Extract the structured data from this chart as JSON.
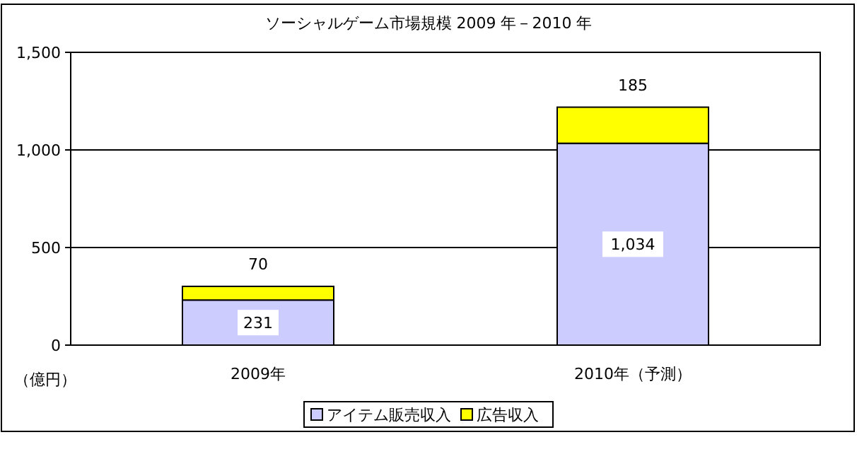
{
  "chart_data": {
    "type": "bar",
    "title": "ソーシャルゲーム市場規模 2009 年－2010 年",
    "ylabel": "（億円）",
    "categories": [
      "2009年",
      "2010年（予測）"
    ],
    "stacked": true,
    "series": [
      {
        "name": "アイテム販売収入",
        "color": "#ccccff",
        "values": [
          231,
          1034
        ],
        "value_labels": [
          "231",
          "1,034"
        ]
      },
      {
        "name": "広告収入",
        "color": "#ffff00",
        "values": [
          70,
          185
        ],
        "value_labels": [
          "70",
          "185"
        ]
      }
    ],
    "ylim": [
      0,
      1500
    ],
    "yticks": [
      0,
      500,
      {
        "value": 1000,
        "label": "1,000"
      },
      {
        "value": 1500,
        "label": "1,500"
      }
    ],
    "grid": "y",
    "legend": "bottom"
  }
}
